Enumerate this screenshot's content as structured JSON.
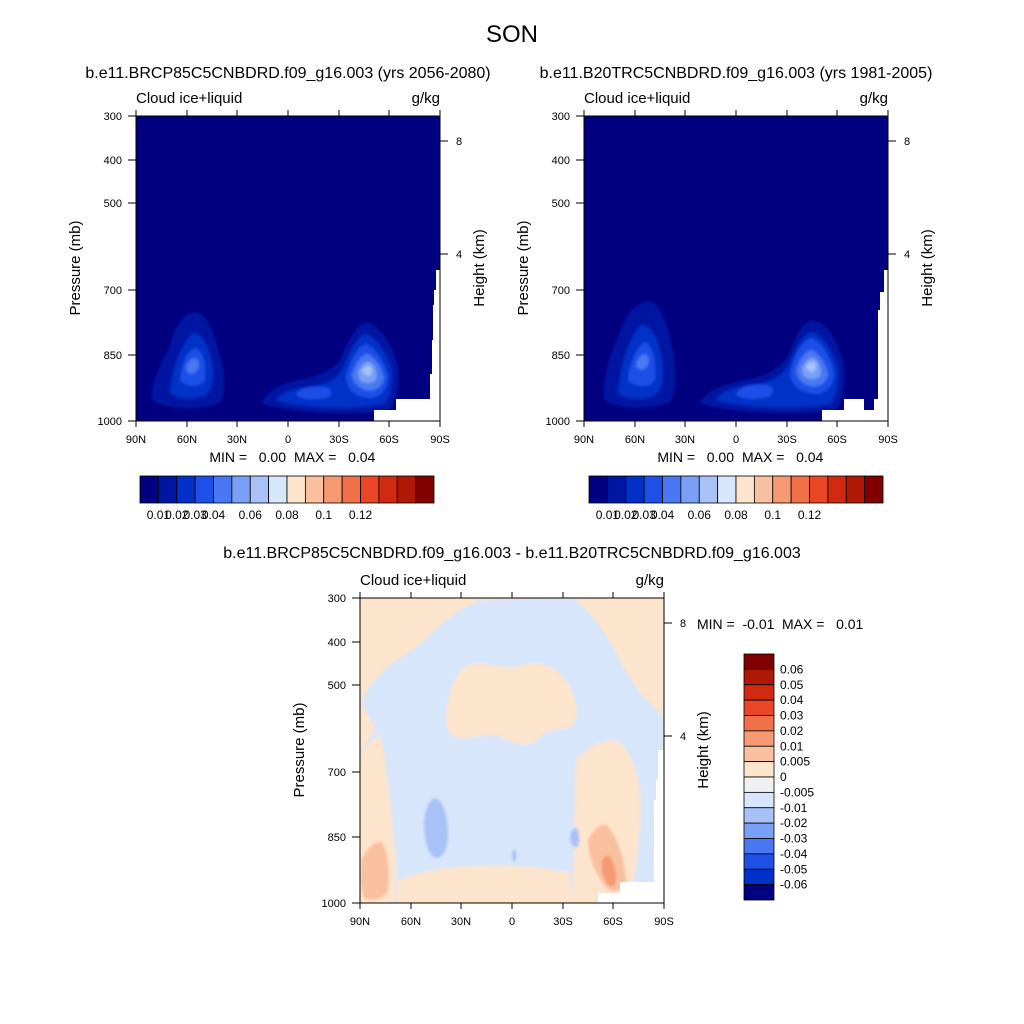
{
  "chart_data": {
    "type": "contour",
    "title": "SON",
    "panels": [
      {
        "id": "p1",
        "title": "b.e11.BRCP85C5CNBDRD.f09_g16.003 (yrs 2056-2080)",
        "left_label": "Cloud ice+liquid",
        "right_label": "g/kg",
        "ylabel": "Pressure (mb)",
        "ylabel_right": "Height (km)",
        "xticks": [
          "90N",
          "60N",
          "30N",
          "0",
          "30S",
          "60S",
          "90S"
        ],
        "yticks": [
          "300",
          "400",
          "500",
          "700",
          "850",
          "1000"
        ],
        "yticks_right": [
          "8",
          "4"
        ],
        "ylim": [
          300,
          1000
        ],
        "xlim": [
          90,
          -90
        ],
        "min_text": "MIN =   0.00",
        "max_text": "MAX =   0.04",
        "background_level": 0.01,
        "features": [
          {
            "lat": 57,
            "p": 870,
            "level": 0.03,
            "description": "northern high-latitude low cloud maximum"
          },
          {
            "lat": -45,
            "p": 880,
            "level": 0.04,
            "description": "southern ocean low cloud maximum"
          },
          {
            "lat": 10,
            "p": 915,
            "level": 0.02,
            "description": "tropical boundary-layer cloud"
          }
        ],
        "colorbar": {
          "labels": [
            "0.01",
            "0.02",
            "0.03",
            "0.04",
            "0.06",
            "0.08",
            "0.1",
            "0.12"
          ],
          "colors": [
            "#000080",
            "#0016a3",
            "#0030c8",
            "#1e50e8",
            "#4a78f2",
            "#7aa0f5",
            "#a8c2f8",
            "#d7e6fa",
            "#fde4cc",
            "#f9c0a0",
            "#f59a72",
            "#f0704a",
            "#e84625",
            "#d02a10",
            "#b01806",
            "#800000"
          ]
        }
      },
      {
        "id": "p2",
        "title": "b.e11.B20TRC5CNBDRD.f09_g16.003 (yrs 1981-2005)",
        "left_label": "Cloud ice+liquid",
        "right_label": "g/kg",
        "ylabel": "Pressure (mb)",
        "ylabel_right": "Height (km)",
        "xticks": [
          "90N",
          "60N",
          "30N",
          "0",
          "30S",
          "60S",
          "90S"
        ],
        "yticks": [
          "300",
          "400",
          "500",
          "700",
          "850",
          "1000"
        ],
        "yticks_right": [
          "8",
          "4"
        ],
        "ylim": [
          300,
          1000
        ],
        "xlim": [
          90,
          -90
        ],
        "min_text": "MIN =   0.00",
        "max_text": "MAX =   0.04",
        "background_level": 0.01,
        "features": [
          {
            "lat": 57,
            "p": 860,
            "level": 0.03,
            "description": "northern high-latitude low cloud maximum"
          },
          {
            "lat": -43,
            "p": 870,
            "level": 0.04,
            "description": "southern ocean low cloud maximum"
          },
          {
            "lat": 10,
            "p": 915,
            "level": 0.02,
            "description": "tropical boundary-layer cloud"
          }
        ],
        "colorbar": {
          "labels": [
            "0.01",
            "0.02",
            "0.03",
            "0.04",
            "0.06",
            "0.08",
            "0.1",
            "0.12"
          ],
          "colors": [
            "#000080",
            "#0016a3",
            "#0030c8",
            "#1e50e8",
            "#4a78f2",
            "#7aa0f5",
            "#a8c2f8",
            "#d7e6fa",
            "#fde4cc",
            "#f9c0a0",
            "#f59a72",
            "#f0704a",
            "#e84625",
            "#d02a10",
            "#b01806",
            "#800000"
          ]
        }
      },
      {
        "id": "p3",
        "title": "b.e11.BRCP85C5CNBDRD.f09_g16.003 - b.e11.B20TRC5CNBDRD.f09_g16.003",
        "left_label": "Cloud ice+liquid",
        "right_label": "g/kg",
        "ylabel": "Pressure (mb)",
        "ylabel_right": "Height (km)",
        "xticks": [
          "90N",
          "60N",
          "30N",
          "0",
          "30S",
          "60S",
          "90S"
        ],
        "yticks": [
          "300",
          "400",
          "500",
          "700",
          "850",
          "1000"
        ],
        "yticks_right": [
          "8",
          "4"
        ],
        "ylim": [
          300,
          1000
        ],
        "xlim": [
          90,
          -90
        ],
        "min_text": "MIN =  -0.01",
        "max_text": "MAX =   0.01",
        "features": [
          {
            "lat": 45,
            "p": 825,
            "level": -0.01,
            "description": "negative difference in northern mid-latitudes"
          },
          {
            "lat": -55,
            "p": 870,
            "level": 0.01,
            "description": "positive difference near southern ocean"
          },
          {
            "lat": 80,
            "p": 880,
            "level": 0.01,
            "description": "positive difference in northern high latitudes"
          }
        ],
        "colorbar": {
          "labels": [
            "0.06",
            "0.05",
            "0.04",
            "0.03",
            "0.02",
            "0.01",
            "0.005",
            "0",
            "-0.005",
            "-0.01",
            "-0.02",
            "-0.03",
            "-0.04",
            "-0.05",
            "-0.06"
          ],
          "colors": [
            "#800000",
            "#b01806",
            "#d02a10",
            "#e84625",
            "#f0704a",
            "#f59a72",
            "#f9c0a0",
            "#fde4cc",
            "#eef0f2",
            "#d7e6fa",
            "#a8c2f8",
            "#7aa0f5",
            "#4a78f2",
            "#1e50e8",
            "#0030c8",
            "#000080"
          ]
        }
      }
    ]
  }
}
